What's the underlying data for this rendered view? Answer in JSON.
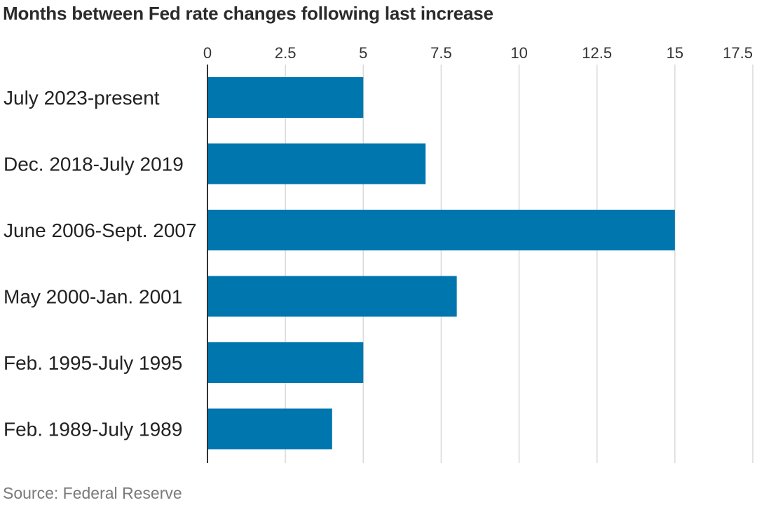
{
  "chart_data": {
    "type": "bar",
    "orientation": "horizontal",
    "title": "Months between Fed rate changes following last increase",
    "categories": [
      "July 2023-present",
      "Dec. 2018-July 2019",
      "June 2006-Sept. 2007",
      "May 2000-Jan. 2001",
      "Feb. 1995-July 1995",
      "Feb. 1989-July 1989"
    ],
    "values": [
      5,
      7,
      15,
      8,
      5,
      4
    ],
    "xlim": [
      0,
      17.5
    ],
    "xticks": [
      "0",
      "2.5",
      "5",
      "7.5",
      "10",
      "12.5",
      "15",
      "17.5"
    ],
    "xtick_values": [
      0,
      2.5,
      5,
      7.5,
      10,
      12.5,
      15,
      17.5
    ],
    "xlabel": "",
    "ylabel": "",
    "grid": "vertical",
    "axis_position": "top",
    "bar_color": "#0076ae",
    "grid_color": "#d9d9d9",
    "source": "Source: Federal Reserve"
  }
}
